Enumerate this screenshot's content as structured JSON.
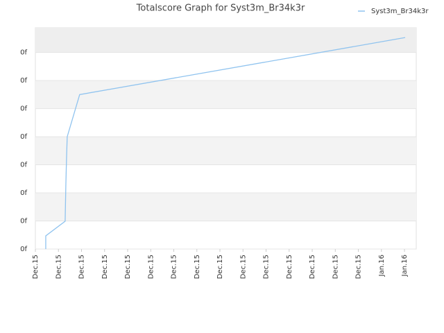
{
  "chart_data": {
    "type": "line",
    "title": "Totalscore Graph for Syst3m_Br34k3r",
    "xlim": [
      0,
      16.51
    ],
    "xticks": [
      {
        "value": 0,
        "label": "Dec.15"
      },
      {
        "value": 1,
        "label": "Dec.15"
      },
      {
        "value": 2,
        "label": "Dec.15"
      },
      {
        "value": 3,
        "label": "Dec.15"
      },
      {
        "value": 4,
        "label": "Dec.15"
      },
      {
        "value": 5,
        "label": "Dec.15"
      },
      {
        "value": 6,
        "label": "Dec.15"
      },
      {
        "value": 7,
        "label": "Dec.15"
      },
      {
        "value": 8,
        "label": "Dec.15"
      },
      {
        "value": 9,
        "label": "Dec.15"
      },
      {
        "value": 10,
        "label": "Dec.15"
      },
      {
        "value": 11,
        "label": "Dec.15"
      },
      {
        "value": 12,
        "label": "Dec.15"
      },
      {
        "value": 13,
        "label": "Dec.15"
      },
      {
        "value": 14,
        "label": "Dec.15"
      },
      {
        "value": 15,
        "label": "Jan.16"
      },
      {
        "value": 16,
        "label": "Jan.16"
      }
    ],
    "ylim": [
      0,
      7.88
    ],
    "yticks": [
      {
        "value": 0,
        "label": "0f"
      },
      {
        "value": 1,
        "label": "0f"
      },
      {
        "value": 2,
        "label": "0f"
      },
      {
        "value": 3,
        "label": "0f"
      },
      {
        "value": 4,
        "label": "0f"
      },
      {
        "value": 5,
        "label": "0f"
      },
      {
        "value": 6,
        "label": "0f"
      },
      {
        "value": 7,
        "label": "0f"
      }
    ],
    "grid": true,
    "legend": "top-right",
    "series": [
      {
        "name": "Syst3m_Br34k3r",
        "color": "#8fc3ef",
        "x": [
          0.45,
          0.45,
          1.29,
          1.32,
          1.35,
          1.38,
          1.92,
          16.03
        ],
        "values": [
          0,
          0.47,
          0.99,
          2.25,
          3.23,
          4.0,
          5.5,
          7.53
        ]
      }
    ]
  }
}
